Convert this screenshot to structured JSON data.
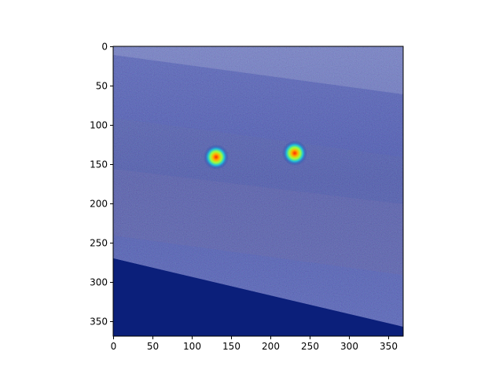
{
  "chart_data": {
    "type": "heatmap",
    "title": "",
    "xlabel": "",
    "ylabel": "",
    "xlim": [
      0,
      369
    ],
    "ylim": [
      369,
      0
    ],
    "x_ticks": [
      "0",
      "50",
      "100",
      "150",
      "200",
      "250",
      "300",
      "350"
    ],
    "y_ticks": [
      "0",
      "50",
      "100",
      "150",
      "200",
      "250",
      "300",
      "350"
    ],
    "grid": false,
    "colormap": "jet",
    "hotspots": [
      {
        "x": 131,
        "y": 141,
        "intensity": 1.0
      },
      {
        "x": 231,
        "y": 136,
        "intensity": 1.0
      }
    ],
    "colors": {
      "background_navy": "#0b1f7a",
      "overlay_dark": "#2a2f66",
      "overlay_mid": "#5a5fa8"
    }
  }
}
